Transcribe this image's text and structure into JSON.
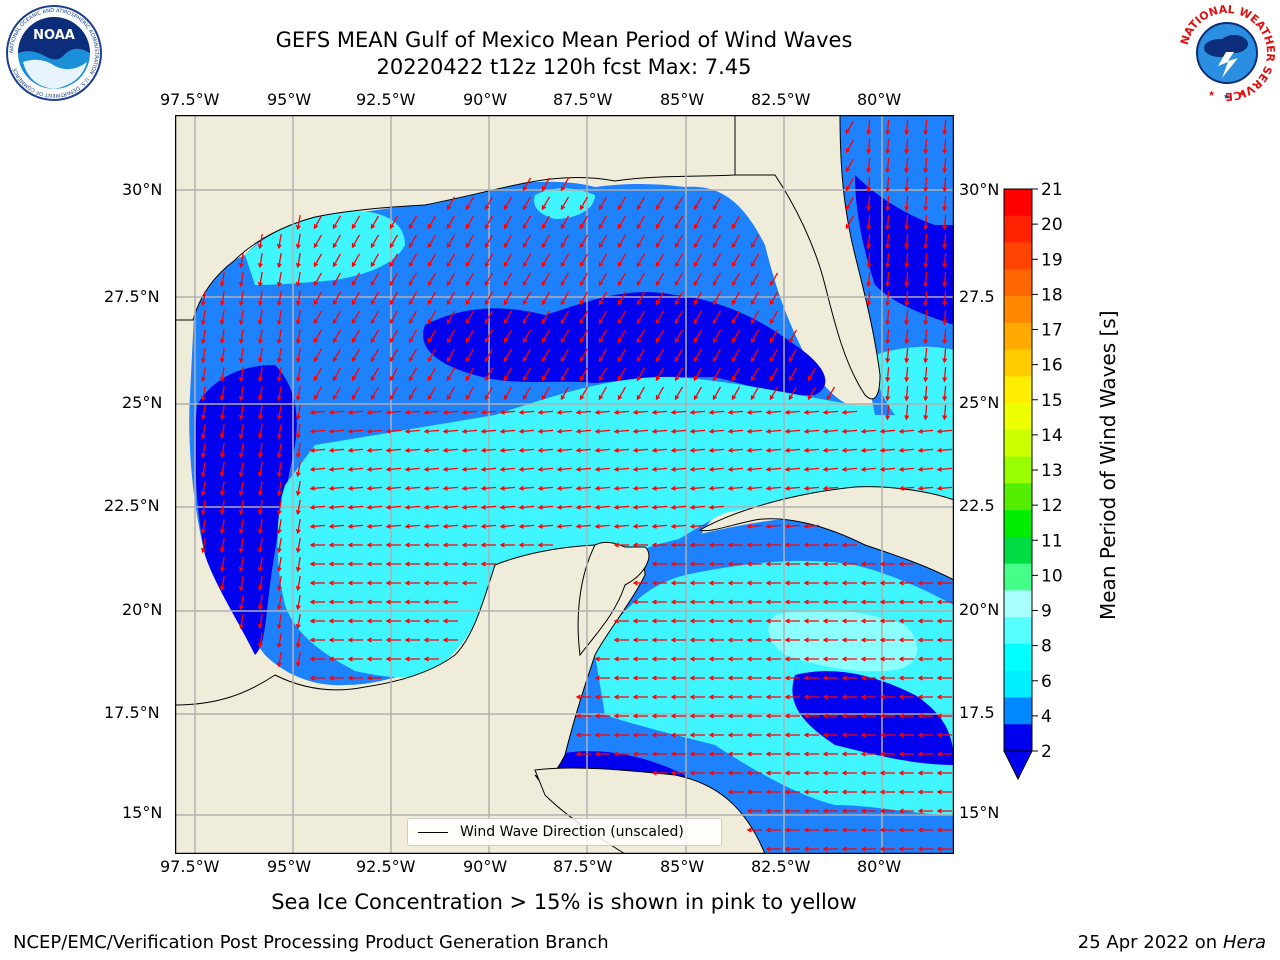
{
  "title_line1": "GEFS MEAN Gulf of Mexico Mean Period of Wind Waves",
  "title_line2": "20220422 t12z 120h fcst   Max: 7.45",
  "lon_ticks": [
    "97.5°W",
    "95°W",
    "92.5°W",
    "90°W",
    "87.5°W",
    "85°W",
    "82.5°W",
    "80°W"
  ],
  "lat_ticks": [
    "30°N",
    "27.5°N",
    "25°N",
    "22.5°N",
    "20°N",
    "17.5°N",
    "15°N"
  ],
  "lat_ticks_right": [
    "30°N",
    "27.5",
    "25°N",
    "22.5",
    "20°N",
    "17.5",
    "15°N"
  ],
  "colorbar": {
    "label": "Mean Period of Wind Waves [s]",
    "ticks": [
      "21",
      "20",
      "19",
      "18",
      "17",
      "16",
      "15",
      "14",
      "13",
      "12",
      "11",
      "10",
      "9",
      "8",
      "6",
      "4",
      "2"
    ],
    "colors": [
      "#ff0000",
      "#ff2200",
      "#ff4400",
      "#ff6600",
      "#ff8800",
      "#ffaa00",
      "#ffcc00",
      "#ffee00",
      "#eeff00",
      "#ccff00",
      "#99ff00",
      "#55ee00",
      "#00ee00",
      "#00dd44",
      "#44ff88",
      "#aaffff",
      "#55ffff",
      "#00ffff",
      "#00eeff",
      "#0088ff",
      "#0000ee"
    ]
  },
  "legend_label": "Wind Wave Direction (unscaled)",
  "caption": "Sea Ice Concentration > 15% is shown in pink to yellow",
  "footer_left": "NCEP/EMC/Verification Post Processing Product Generation Branch",
  "footer_right_date": "25 Apr 2022 on",
  "footer_right_host": "Hera",
  "logos": {
    "noaa": "NOAA",
    "noaa_ring": "NATIONAL OCEANIC AND ATMOSPHERIC ADMINISTRATION · U.S. DEPARTMENT OF COMMERCE",
    "nws_ring": "NATIONAL WEATHER SERVICE"
  },
  "palette": {
    "land": "#efedda",
    "deep_blue": "#0000ee",
    "mid_blue": "#1e82ff",
    "cyan": "#3ff5ff",
    "light_cyan": "#8cffff",
    "arrow": "#ff0000"
  }
}
